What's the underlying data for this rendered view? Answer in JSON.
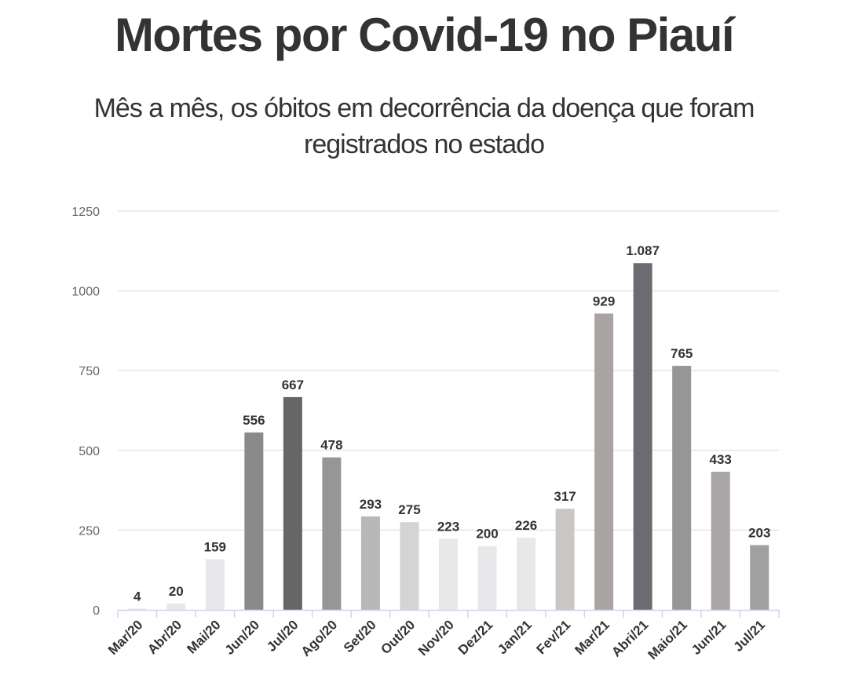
{
  "chart_data": {
    "type": "bar",
    "title": "Mortes por Covid-19 no Piauí",
    "subtitle": "Mês a mês, os óbitos em decorrência da doença que foram registrados no estado",
    "categories": [
      "Mar/20",
      "Abr/20",
      "Mai/20",
      "Jun/20",
      "Jul/20",
      "Ago/20",
      "Set/20",
      "Out/20",
      "Nov/20",
      "Dez/21",
      "Jan/21",
      "Fev/21",
      "Mar/21",
      "Abri/21",
      "Maio/21",
      "Jun/21",
      "Jul/21"
    ],
    "values": [
      4,
      20,
      159,
      556,
      667,
      478,
      293,
      275,
      223,
      200,
      226,
      317,
      929,
      1087,
      765,
      433,
      203
    ],
    "data_labels": [
      "4",
      "20",
      "159",
      "556",
      "667",
      "478",
      "293",
      "275",
      "223",
      "200",
      "226",
      "317",
      "929",
      "1.087",
      "765",
      "433",
      "203"
    ],
    "bar_colors": [
      "#e8e8ea",
      "#e8e8ea",
      "#e8e8ea",
      "#8a8a8a",
      "#666666",
      "#969696",
      "#b8b8b8",
      "#d4d4d4",
      "#e8e8ea",
      "#e8e8ea",
      "#e8e8ea",
      "#cbc6c6",
      "#a9a3a3",
      "#6c6b71",
      "#969696",
      "#aaa6a6",
      "#a0a0a0"
    ],
    "yticks": [
      0,
      250,
      500,
      750,
      1000,
      1250
    ],
    "ylim": [
      0,
      1250
    ],
    "xlabel": "",
    "ylabel": "",
    "grid": true,
    "legend": "none"
  }
}
